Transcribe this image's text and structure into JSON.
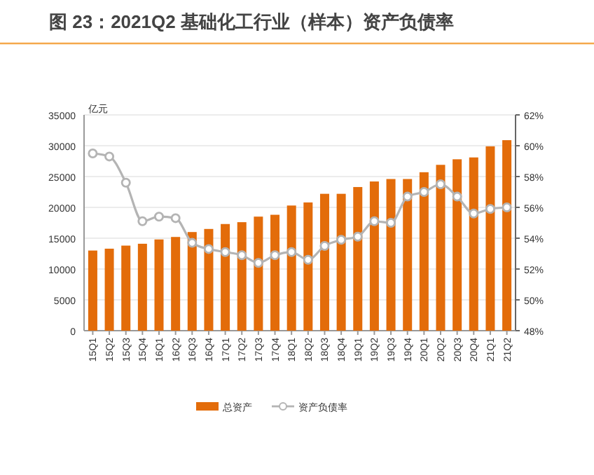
{
  "chart_data": {
    "type": "bar",
    "title": "图 23：2021Q2 基础化工行业（样本）资产负债率",
    "ylabel": "亿元",
    "categories": [
      "15Q1",
      "15Q2",
      "15Q3",
      "15Q4",
      "16Q1",
      "16Q2",
      "16Q3",
      "16Q4",
      "17Q1",
      "17Q2",
      "17Q3",
      "17Q4",
      "18Q1",
      "18Q2",
      "18Q3",
      "18Q4",
      "19Q1",
      "19Q2",
      "19Q3",
      "19Q4",
      "20Q1",
      "20Q2",
      "20Q3",
      "20Q4",
      "21Q1",
      "21Q2"
    ],
    "series": [
      {
        "name": "总资产",
        "color": "#e36c0a",
        "values": [
          13000,
          13300,
          13800,
          14100,
          14800,
          15200,
          16000,
          16500,
          17300,
          17600,
          18500,
          18800,
          20300,
          20800,
          22200,
          22200,
          23300,
          24200,
          24600,
          24600,
          25700,
          26900,
          27800,
          28100,
          29900,
          30900
        ]
      },
      {
        "name": "资产负债率",
        "type": "line",
        "axis": "y2",
        "color": "#b4b4b4",
        "marker": "circle",
        "values": [
          59.5,
          59.3,
          57.6,
          55.1,
          55.4,
          55.3,
          53.7,
          53.3,
          53.1,
          52.9,
          52.4,
          52.9,
          53.1,
          52.6,
          53.5,
          53.9,
          54.1,
          55.1,
          55.0,
          56.7,
          57.0,
          57.5,
          56.7,
          55.6,
          55.9,
          56.0
        ]
      }
    ],
    "ylim": [
      0,
      35000
    ],
    "yticks": [
      0,
      5000,
      10000,
      15000,
      20000,
      25000,
      30000,
      35000
    ],
    "y2lim": [
      48,
      62
    ],
    "y2ticks": [
      {
        "value": 48,
        "label": "48%"
      },
      {
        "value": 50,
        "label": "50%"
      },
      {
        "value": 52,
        "label": "52%"
      },
      {
        "value": 54,
        "label": "54%"
      },
      {
        "value": 56,
        "label": "56%"
      },
      {
        "value": 58,
        "label": "58%"
      },
      {
        "value": 60,
        "label": "60%"
      },
      {
        "value": 62,
        "label": "62%"
      }
    ],
    "grid": "y",
    "legend": "bottom"
  }
}
